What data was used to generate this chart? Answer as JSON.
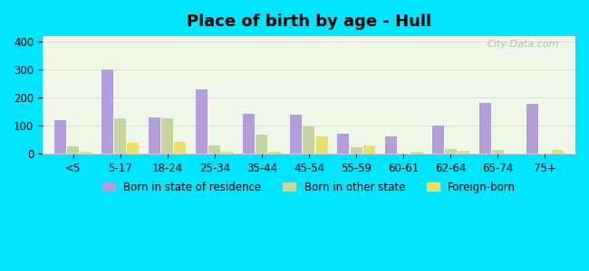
{
  "title": "Place of birth by age - Hull",
  "categories": [
    "<5",
    "5-17",
    "18-24",
    "25-34",
    "35-44",
    "45-54",
    "55-59",
    "60-61",
    "62-64",
    "65-74",
    "75+"
  ],
  "born_in_state": [
    120,
    302,
    130,
    228,
    143,
    140,
    70,
    60,
    100,
    180,
    178
  ],
  "born_other_state": [
    25,
    125,
    127,
    28,
    68,
    97,
    22,
    0,
    15,
    12,
    0
  ],
  "foreign_born": [
    7,
    38,
    43,
    7,
    5,
    62,
    28,
    7,
    8,
    0,
    12
  ],
  "color_state": "#b39ddb",
  "color_other": "#c5d5a0",
  "color_foreign": "#e8e06a",
  "ylim": [
    0,
    420
  ],
  "yticks": [
    0,
    100,
    200,
    300,
    400
  ],
  "background_top": "#e8f5e9",
  "background_bottom": "#f9ffe9",
  "bg_outer": "#00e5ff",
  "legend_labels": [
    "Born in state of residence",
    "Born in other state",
    "Foreign-born"
  ],
  "watermark": "City-Data.com"
}
